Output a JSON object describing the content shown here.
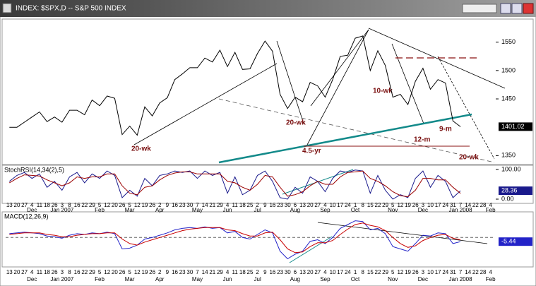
{
  "window": {
    "title": "INDEX: $SPX,D -- S&P 500 INDEX"
  },
  "chart_data": [
    {
      "type": "line",
      "color": "#000000",
      "values": [
        1400,
        1400,
        1409,
        1418,
        1427,
        1410,
        1418,
        1409,
        1430,
        1430,
        1422,
        1448,
        1438,
        1455,
        1451,
        1387,
        1402,
        1386,
        1436,
        1420,
        1443,
        1452,
        1484,
        1494,
        1505,
        1505,
        1522,
        1515,
        1536,
        1507,
        1532,
        1502,
        1503,
        1530,
        1552,
        1534,
        1458,
        1433,
        1453,
        1445,
        1479,
        1473,
        1453,
        1484,
        1525,
        1527,
        1557,
        1561,
        1500,
        1535,
        1509,
        1453,
        1458,
        1440,
        1481,
        1504,
        1467,
        1484,
        1478,
        1411,
        1401.02,
        null,
        null,
        null,
        null
      ],
      "ylim": [
        1338,
        1587
      ],
      "yticks": [
        1350,
        1450,
        1500,
        1550
      ],
      "annotations": [
        "20-wk",
        "20-wk",
        "4.5-yr",
        "10-wk",
        "9-m",
        "12-m",
        "20-wk"
      ]
    },
    {
      "type": "line",
      "title": "StochRSI(14,34(2),5)",
      "categories": [
        "13",
        "20",
        "27",
        "4",
        "11",
        "18",
        "26",
        "3",
        "8",
        "16",
        "22",
        "29",
        "5",
        "12",
        "20",
        "26",
        "5",
        "12",
        "19",
        "26",
        "2",
        "9",
        "16",
        "23",
        "30",
        "7",
        "14",
        "21",
        "29",
        "4",
        "11",
        "18",
        "25",
        "2",
        "9",
        "16",
        "23",
        "30",
        "6",
        "13",
        "20",
        "27",
        "4",
        "10",
        "17",
        "24",
        "1",
        "8",
        "15",
        "22",
        "29",
        "5",
        "12",
        "19",
        "26",
        "3",
        "10",
        "17",
        "24",
        "31",
        "7",
        "14",
        "22",
        "28",
        "4"
      ],
      "months": [
        "Dec",
        "Jan 2007",
        "Feb",
        "Mar",
        "Apr",
        "May",
        "Jun",
        "Jul",
        "Aug",
        "Sep",
        "Oct",
        "Nov",
        "Dec",
        "Jan 2008",
        "Feb"
      ],
      "series": [
        {
          "color": "#1a1a8c",
          "values": [
            60,
            80,
            90,
            70,
            85,
            40,
            60,
            30,
            75,
            90,
            55,
            85,
            70,
            95,
            80,
            5,
            30,
            10,
            70,
            45,
            80,
            85,
            95,
            90,
            95,
            70,
            95,
            80,
            90,
            20,
            75,
            15,
            30,
            80,
            95,
            60,
            5,
            0,
            40,
            20,
            75,
            60,
            25,
            70,
            95,
            90,
            98,
            95,
            20,
            80,
            30,
            0,
            15,
            5,
            70,
            95,
            40,
            80,
            60,
            5,
            28.36,
            null,
            null,
            null,
            null
          ]
        },
        {
          "color": "#9b0000",
          "values": [
            55,
            70,
            82,
            80,
            78,
            65,
            55,
            45,
            55,
            75,
            70,
            75,
            75,
            85,
            85,
            45,
            20,
            15,
            40,
            45,
            65,
            80,
            88,
            92,
            92,
            85,
            85,
            85,
            85,
            60,
            55,
            40,
            30,
            50,
            80,
            75,
            40,
            10,
            15,
            25,
            45,
            60,
            50,
            50,
            75,
            90,
            92,
            95,
            70,
            60,
            45,
            25,
            12,
            8,
            30,
            70,
            70,
            65,
            65,
            40,
            19.5,
            null,
            null,
            null,
            null
          ]
        }
      ],
      "ylim": [
        0,
        100
      ],
      "yticks": [
        {
          "value": 0,
          "label": "0.00"
        },
        {
          "value": 100,
          "label": "100.00"
        }
      ]
    },
    {
      "type": "line",
      "title": "MACD(12,26,9)",
      "categories": [
        "13",
        "20",
        "27",
        "4",
        "11",
        "18",
        "26",
        "3",
        "8",
        "16",
        "22",
        "29",
        "5",
        "12",
        "20",
        "26",
        "5",
        "12",
        "19",
        "26",
        "2",
        "9",
        "16",
        "23",
        "30",
        "7",
        "14",
        "21",
        "29",
        "4",
        "11",
        "18",
        "25",
        "2",
        "9",
        "16",
        "23",
        "30",
        "6",
        "13",
        "20",
        "27",
        "4",
        "10",
        "17",
        "24",
        "1",
        "8",
        "15",
        "22",
        "29",
        "5",
        "12",
        "19",
        "26",
        "3",
        "10",
        "17",
        "24",
        "31",
        "7",
        "14",
        "22",
        "28",
        "4"
      ],
      "months": [
        "Dec",
        "Jan 2007",
        "Feb",
        "Mar",
        "Apr",
        "May",
        "Jun",
        "Jul",
        "Aug",
        "Sep",
        "Oct",
        "Nov",
        "Dec",
        "Jan 2008",
        "Feb"
      ],
      "series": [
        {
          "color": "#2323c8",
          "values": [
            5,
            6,
            7,
            6,
            5,
            2,
            1,
            -1,
            3,
            5,
            4,
            6,
            5,
            7,
            5,
            -15,
            -14,
            -10,
            -2,
            0,
            3,
            6,
            10,
            12,
            13,
            12,
            14,
            12,
            13,
            6,
            8,
            0,
            -2,
            4,
            10,
            6,
            -18,
            -28,
            -22,
            -18,
            -5,
            -3,
            -8,
            0,
            12,
            17,
            22,
            21,
            10,
            12,
            5,
            -12,
            -15,
            -18,
            -8,
            3,
            2,
            6,
            5,
            -8,
            -5.44,
            null,
            null,
            null,
            null
          ]
        },
        {
          "color": "#c80000",
          "values": [
            4,
            5,
            6,
            6,
            6,
            4,
            3,
            1,
            1,
            3,
            4,
            5,
            5,
            6,
            6,
            -2,
            -8,
            -10,
            -6,
            -3,
            0,
            3,
            6,
            9,
            11,
            12,
            13,
            13,
            13,
            10,
            9,
            5,
            2,
            2,
            6,
            7,
            -3,
            -15,
            -20,
            -19,
            -12,
            -7,
            -7,
            -4,
            4,
            11,
            17,
            19,
            16,
            14,
            9,
            0,
            -8,
            -13,
            -11,
            -4,
            0,
            3,
            4,
            -1,
            -3,
            null,
            null,
            null,
            null
          ]
        }
      ],
      "ylim": [
        -35,
        30
      ]
    }
  ]
}
